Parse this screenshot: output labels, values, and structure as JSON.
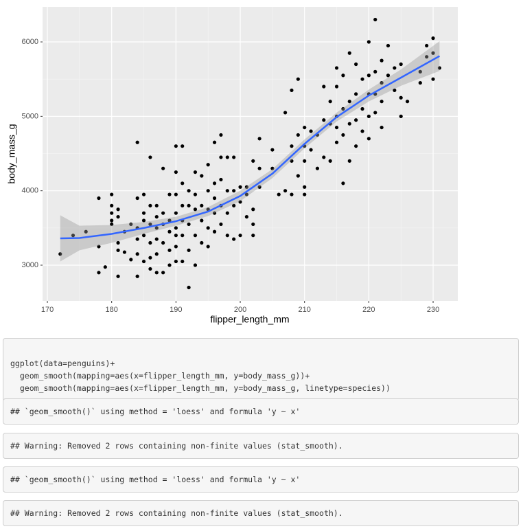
{
  "chart_data": {
    "type": "scatter",
    "x_label": "flipper_length_mm",
    "y_label": "body_mass_g",
    "xlim": [
      169.25,
      233.84
    ],
    "ylim": [
      2520,
      6471
    ],
    "xticks": [
      170,
      180,
      190,
      200,
      210,
      220,
      230
    ],
    "yticks": [
      3000,
      4000,
      5000,
      6000
    ],
    "xminor": [
      175,
      185,
      195,
      205,
      215,
      225
    ],
    "yminor": [
      2500,
      3500,
      4500,
      5500
    ],
    "grid": true,
    "point_color": "#000000",
    "x": [
      172,
      174,
      176,
      178,
      178,
      178,
      179,
      180,
      180,
      180,
      180,
      180,
      181,
      181,
      181,
      181,
      181,
      182,
      182,
      183,
      183,
      184,
      184,
      184,
      184,
      184,
      184,
      185,
      185,
      185,
      185,
      185,
      186,
      186,
      186,
      186,
      186,
      186,
      187,
      187,
      187,
      187,
      187,
      187,
      188,
      188,
      188,
      188,
      188,
      189,
      189,
      189,
      189,
      189,
      190,
      190,
      190,
      190,
      190,
      190,
      190,
      190,
      191,
      191,
      191,
      191,
      191,
      191,
      192,
      192,
      192,
      192,
      192,
      193,
      193,
      193,
      193,
      193,
      194,
      194,
      194,
      194,
      195,
      195,
      195,
      195,
      195,
      196,
      196,
      196,
      196,
      196,
      197,
      197,
      197,
      197,
      197,
      198,
      198,
      198,
      198,
      199,
      199,
      199,
      199,
      200,
      200,
      200,
      201,
      201,
      201,
      202,
      202,
      202,
      202,
      203,
      203,
      203,
      205,
      205,
      206,
      207,
      207,
      208,
      208,
      208,
      208,
      209,
      209,
      209,
      210,
      210,
      210,
      210,
      210,
      211,
      211,
      212,
      212,
      213,
      213,
      213,
      214,
      214,
      214,
      215,
      215,
      215,
      215,
      215,
      216,
      216,
      216,
      216,
      217,
      217,
      217,
      217,
      218,
      218,
      218,
      218,
      219,
      219,
      219,
      220,
      220,
      220,
      220,
      220,
      221,
      221,
      221,
      221,
      222,
      222,
      222,
      222,
      223,
      223,
      224,
      224,
      225,
      225,
      225,
      226,
      228,
      228,
      229,
      229,
      230,
      230,
      230,
      231
    ],
    "values": [
      3150,
      3400,
      3450,
      3900,
      3250,
      2900,
      2975,
      3950,
      3800,
      3700,
      3600,
      3550,
      3750,
      3650,
      3300,
      3200,
      2850,
      3450,
      3175,
      3550,
      3075,
      4650,
      3900,
      3500,
      3350,
      2850,
      3150,
      3950,
      3700,
      3600,
      3400,
      3050,
      4450,
      3800,
      3550,
      3300,
      3100,
      2950,
      3800,
      3650,
      3500,
      3350,
      3150,
      2900,
      4300,
      3700,
      3550,
      3300,
      2900,
      3950,
      3600,
      3450,
      3200,
      3000,
      4600,
      4250,
      3950,
      3700,
      3500,
      3400,
      3250,
      3050,
      4600,
      4100,
      3800,
      3600,
      3400,
      3050,
      4000,
      3800,
      3550,
      3200,
      2700,
      4250,
      3950,
      3750,
      3400,
      3000,
      4200,
      3800,
      3600,
      3300,
      4350,
      4000,
      3750,
      3500,
      3250,
      4650,
      4100,
      3900,
      3700,
      3450,
      4750,
      4450,
      4150,
      3800,
      3550,
      4450,
      4000,
      3700,
      3400,
      4450,
      4000,
      3800,
      3350,
      4050,
      3850,
      3400,
      4050,
      3950,
      3650,
      4400,
      3750,
      3550,
      3400,
      4700,
      4300,
      4050,
      4550,
      4300,
      3950,
      5050,
      4000,
      5350,
      4600,
      4400,
      3950,
      5500,
      4750,
      4200,
      4850,
      4600,
      4400,
      4050,
      3950,
      4800,
      4550,
      4750,
      4300,
      5400,
      4950,
      4450,
      5200,
      4900,
      4400,
      5650,
      5400,
      5000,
      4850,
      4650,
      5550,
      5100,
      4750,
      4100,
      5850,
      5200,
      4900,
      4400,
      5700,
      5300,
      4950,
      4600,
      5500,
      5100,
      4800,
      6000,
      5550,
      5300,
      5000,
      4700,
      6300,
      5600,
      5300,
      5050,
      5750,
      5450,
      5200,
      4850,
      5950,
      5550,
      5650,
      5350,
      5700,
      5250,
      5000,
      5200,
      5600,
      5450,
      5950,
      5800,
      6050,
      5850,
      5500,
      5650
    ],
    "smooth": {
      "color": "#3366ff",
      "band_color": "#999999",
      "x": [
        172,
        175,
        180,
        185,
        190,
        195,
        200,
        205,
        210,
        215,
        220,
        225,
        231
      ],
      "values": [
        3360,
        3365,
        3420,
        3500,
        3590,
        3720,
        3930,
        4230,
        4630,
        4990,
        5280,
        5520,
        5810
      ],
      "lower": [
        3050,
        3200,
        3300,
        3420,
        3530,
        3660,
        3860,
        4170,
        4570,
        4930,
        5200,
        5410,
        5610
      ],
      "upper": [
        3670,
        3530,
        3540,
        3580,
        3650,
        3780,
        4000,
        4290,
        4690,
        5050,
        5360,
        5630,
        6010
      ]
    }
  },
  "code": {
    "lines": [
      "ggplot(data=penguins)+",
      "  geom_smooth(mapping=aes(x=flipper_length_mm, y=body_mass_g))+",
      "  geom_smooth(mapping=aes(x=flipper_length_mm, y=body_mass_g, linetype=species))"
    ]
  },
  "outputs": [
    "## `geom_smooth()` using method = 'loess' and formula 'y ~ x'",
    "## Warning: Removed 2 rows containing non-finite values (stat_smooth).",
    "## `geom_smooth()` using method = 'loess' and formula 'y ~ x'",
    "## Warning: Removed 2 rows containing non-finite values (stat_smooth)."
  ]
}
